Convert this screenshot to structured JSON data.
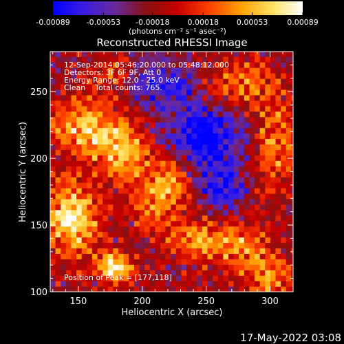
{
  "chart_data": {
    "type": "heatmap",
    "title": "Reconstructed RHESSI Image",
    "xlabel": "Heliocentric X (arcsec)",
    "ylabel": "Heliocentric Y (arcsec)",
    "xlim": [
      128,
      318
    ],
    "ylim": [
      100,
      280
    ],
    "xticks": [
      150,
      200,
      250,
      300
    ],
    "yticks": [
      100,
      150,
      200,
      250
    ],
    "colorbar": {
      "range": [
        -0.00089,
        0.00089
      ],
      "ticks": [
        "-0.00089",
        "-0.00053",
        "-0.00018",
        "0.00018",
        "0.00053",
        "0.00089"
      ],
      "label": "(photons cm⁻² s⁻¹ asec⁻²)",
      "colors": [
        "#0000ff",
        "#3a1fe0",
        "#6a2a9a",
        "#8a1010",
        "#c80000",
        "#ff4000",
        "#ffa000",
        "#ffe060",
        "#ffffff"
      ]
    },
    "annotations": [
      "12-Sep-2014 05:46:20.000 to 05:48:12.000",
      "Detectors: 3F 6F 9F, Att 0",
      "Energy Range: 12.0 - 25.0 keV",
      "Clean    Total counts: 765."
    ],
    "peak_label": "Position of Peak = [177,118]",
    "peak": [
      177,
      118
    ],
    "emission_blobs": [
      {
        "x": 145,
        "y": 155,
        "sx": 14,
        "sy": 18,
        "amp": 1.0
      },
      {
        "x": 178,
        "y": 118,
        "sx": 10,
        "sy": 8,
        "amp": 1.0
      },
      {
        "x": 155,
        "y": 225,
        "sx": 20,
        "sy": 14,
        "amp": 0.75
      },
      {
        "x": 185,
        "y": 205,
        "sx": 16,
        "sy": 14,
        "amp": 0.7
      },
      {
        "x": 205,
        "y": 170,
        "sx": 14,
        "sy": 16,
        "amp": 0.55
      },
      {
        "x": 225,
        "y": 185,
        "sx": 10,
        "sy": 14,
        "amp": 0.55
      },
      {
        "x": 240,
        "y": 140,
        "sx": 14,
        "sy": 10,
        "amp": 0.55
      },
      {
        "x": 275,
        "y": 135,
        "sx": 16,
        "sy": 14,
        "amp": 0.55
      },
      {
        "x": 300,
        "y": 110,
        "sx": 12,
        "sy": 12,
        "amp": 0.6
      },
      {
        "x": 305,
        "y": 210,
        "sx": 14,
        "sy": 22,
        "amp": 0.55
      },
      {
        "x": 275,
        "y": 255,
        "sx": 22,
        "sy": 12,
        "amp": 0.5
      },
      {
        "x": 175,
        "y": 265,
        "sx": 12,
        "sy": 10,
        "amp": 0.35
      }
    ],
    "negative_blobs": [
      {
        "x": 250,
        "y": 215,
        "sx": 22,
        "sy": 20,
        "amp": 0.8
      },
      {
        "x": 215,
        "y": 255,
        "sx": 20,
        "sy": 12,
        "amp": 0.55
      },
      {
        "x": 265,
        "y": 175,
        "sx": 12,
        "sy": 12,
        "amp": 0.5
      }
    ]
  },
  "footer": {
    "date_stamp": "17-May-2022 03:08"
  }
}
